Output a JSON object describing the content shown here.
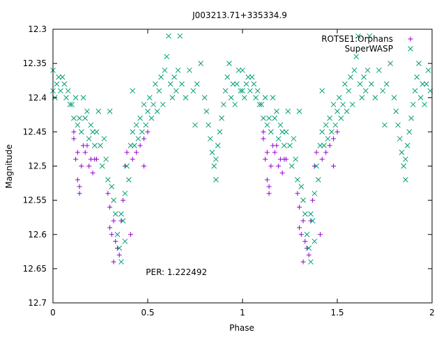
{
  "chart_data": {
    "type": "scatter",
    "title": "J003213.71+335334.9",
    "xlabel": "Phase",
    "ylabel": "Magnitude",
    "xlim": [
      0,
      2
    ],
    "ylim": [
      12.3,
      12.7
    ],
    "y_inverted": true,
    "x_ticks": [
      0,
      0.5,
      1,
      1.5,
      2
    ],
    "x_tick_labels": [
      "0",
      "0.5",
      "1",
      "1.5",
      "2"
    ],
    "y_ticks": [
      12.3,
      12.35,
      12.4,
      12.45,
      12.5,
      12.55,
      12.6,
      12.65,
      12.7
    ],
    "y_tick_labels": [
      "12.3",
      "12.35",
      "12.4",
      "12.45",
      "12.5",
      "12.55",
      "12.6",
      "12.65",
      "12.7"
    ],
    "annotation": "PER: 1.222492",
    "annotation_pos": [
      0.49,
      12.655
    ],
    "legend_placement": "top-right",
    "phase_repeat": 1,
    "series": [
      {
        "name": "ROTSE1:Orphans",
        "marker": "plus",
        "color": "#9400d3",
        "points": [
          [
            0.11,
            12.45
          ],
          [
            0.11,
            12.46
          ],
          [
            0.12,
            12.49
          ],
          [
            0.13,
            12.48
          ],
          [
            0.13,
            12.52
          ],
          [
            0.14,
            12.53
          ],
          [
            0.14,
            12.54
          ],
          [
            0.15,
            12.5
          ],
          [
            0.16,
            12.47
          ],
          [
            0.17,
            12.48
          ],
          [
            0.18,
            12.47
          ],
          [
            0.19,
            12.5
          ],
          [
            0.2,
            12.49
          ],
          [
            0.21,
            12.51
          ],
          [
            0.22,
            12.49
          ],
          [
            0.23,
            12.49
          ],
          [
            0.29,
            12.54
          ],
          [
            0.3,
            12.56
          ],
          [
            0.3,
            12.59
          ],
          [
            0.31,
            12.6
          ],
          [
            0.32,
            12.58
          ],
          [
            0.32,
            12.64
          ],
          [
            0.33,
            12.61
          ],
          [
            0.34,
            12.62
          ],
          [
            0.35,
            12.63
          ],
          [
            0.36,
            12.58
          ],
          [
            0.37,
            12.55
          ],
          [
            0.38,
            12.5
          ],
          [
            0.39,
            12.48
          ],
          [
            0.41,
            12.6
          ],
          [
            0.42,
            12.49
          ],
          [
            0.44,
            12.48
          ],
          [
            0.46,
            12.47
          ],
          [
            0.48,
            12.46
          ],
          [
            0.48,
            12.5
          ],
          [
            0.5,
            12.45
          ]
        ]
      },
      {
        "name": "SuperWASP",
        "marker": "cross",
        "color": "#009e73",
        "points": [
          [
            0.0,
            12.36
          ],
          [
            0.0,
            12.39
          ],
          [
            0.01,
            12.4
          ],
          [
            0.02,
            12.38
          ],
          [
            0.03,
            12.37
          ],
          [
            0.04,
            12.39
          ],
          [
            0.05,
            12.37
          ],
          [
            0.06,
            12.38
          ],
          [
            0.07,
            12.4
          ],
          [
            0.08,
            12.39
          ],
          [
            0.09,
            12.41
          ],
          [
            0.1,
            12.41
          ],
          [
            0.11,
            12.43
          ],
          [
            0.12,
            12.4
          ],
          [
            0.13,
            12.44
          ],
          [
            0.14,
            12.43
          ],
          [
            0.15,
            12.45
          ],
          [
            0.16,
            12.4
          ],
          [
            0.17,
            12.43
          ],
          [
            0.18,
            12.42
          ],
          [
            0.19,
            12.46
          ],
          [
            0.2,
            12.44
          ],
          [
            0.21,
            12.45
          ],
          [
            0.22,
            12.47
          ],
          [
            0.23,
            12.45
          ],
          [
            0.24,
            12.42
          ],
          [
            0.25,
            12.47
          ],
          [
            0.26,
            12.5
          ],
          [
            0.27,
            12.46
          ],
          [
            0.28,
            12.49
          ],
          [
            0.29,
            12.52
          ],
          [
            0.3,
            12.42
          ],
          [
            0.31,
            12.53
          ],
          [
            0.32,
            12.55
          ],
          [
            0.33,
            12.57
          ],
          [
            0.34,
            12.6
          ],
          [
            0.35,
            12.62
          ],
          [
            0.36,
            12.64
          ],
          [
            0.36,
            12.57
          ],
          [
            0.37,
            12.58
          ],
          [
            0.38,
            12.54
          ],
          [
            0.38,
            12.61
          ],
          [
            0.39,
            12.5
          ],
          [
            0.4,
            12.52
          ],
          [
            0.41,
            12.47
          ],
          [
            0.42,
            12.45
          ],
          [
            0.42,
            12.39
          ],
          [
            0.43,
            12.47
          ],
          [
            0.44,
            12.44
          ],
          [
            0.45,
            12.46
          ],
          [
            0.46,
            12.43
          ],
          [
            0.47,
            12.45
          ],
          [
            0.48,
            12.41
          ],
          [
            0.49,
            12.44
          ],
          [
            0.5,
            12.42
          ],
          [
            0.51,
            12.4
          ],
          [
            0.52,
            12.43
          ],
          [
            0.53,
            12.41
          ],
          [
            0.54,
            12.38
          ],
          [
            0.55,
            12.42
          ],
          [
            0.56,
            12.39
          ],
          [
            0.57,
            12.37
          ],
          [
            0.58,
            12.41
          ],
          [
            0.59,
            12.36
          ],
          [
            0.6,
            12.34
          ],
          [
            0.61,
            12.31
          ],
          [
            0.62,
            12.38
          ],
          [
            0.63,
            12.4
          ],
          [
            0.64,
            12.37
          ],
          [
            0.65,
            12.39
          ],
          [
            0.66,
            12.36
          ],
          [
            0.67,
            12.31
          ],
          [
            0.68,
            12.38
          ],
          [
            0.7,
            12.4
          ],
          [
            0.72,
            12.36
          ],
          [
            0.74,
            12.39
          ],
          [
            0.75,
            12.44
          ],
          [
            0.76,
            12.38
          ],
          [
            0.78,
            12.35
          ],
          [
            0.8,
            12.4
          ],
          [
            0.81,
            12.42
          ],
          [
            0.82,
            12.44
          ],
          [
            0.83,
            12.46
          ],
          [
            0.84,
            12.48
          ],
          [
            0.85,
            12.5
          ],
          [
            0.86,
            12.49
          ],
          [
            0.86,
            12.52
          ],
          [
            0.87,
            12.47
          ],
          [
            0.88,
            12.45
          ],
          [
            0.89,
            12.43
          ],
          [
            0.9,
            12.41
          ],
          [
            0.91,
            12.39
          ],
          [
            0.92,
            12.37
          ],
          [
            0.93,
            12.35
          ],
          [
            0.94,
            12.4
          ],
          [
            0.95,
            12.38
          ],
          [
            0.96,
            12.41
          ],
          [
            0.97,
            12.38
          ],
          [
            0.98,
            12.36
          ],
          [
            0.99,
            12.39
          ]
        ]
      }
    ]
  }
}
